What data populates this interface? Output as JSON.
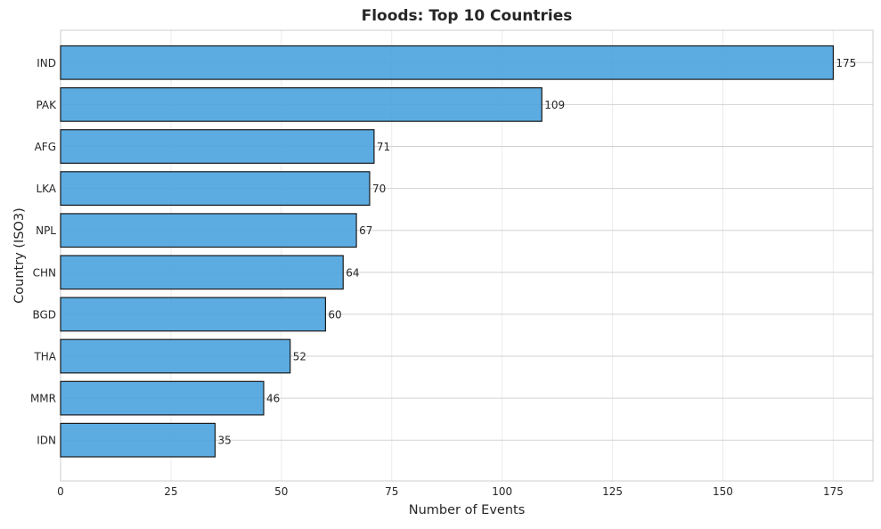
{
  "chart_data": {
    "type": "bar",
    "orientation": "horizontal",
    "title": "Floods: Top 10 Countries",
    "xlabel": "Number of Events",
    "ylabel": "Country (ISO3)",
    "categories": [
      "IND",
      "PAK",
      "AFG",
      "LKA",
      "NPL",
      "CHN",
      "BGD",
      "THA",
      "MMR",
      "IDN"
    ],
    "values": [
      175,
      109,
      71,
      70,
      67,
      64,
      60,
      52,
      46,
      35
    ],
    "xlim": [
      0,
      184
    ],
    "xticks": [
      0,
      25,
      50,
      75,
      100,
      125,
      150,
      175
    ],
    "grid": true,
    "bar_color": "#4aa3df",
    "bar_edge_color": "#1a1a1a",
    "data_labels": true
  }
}
